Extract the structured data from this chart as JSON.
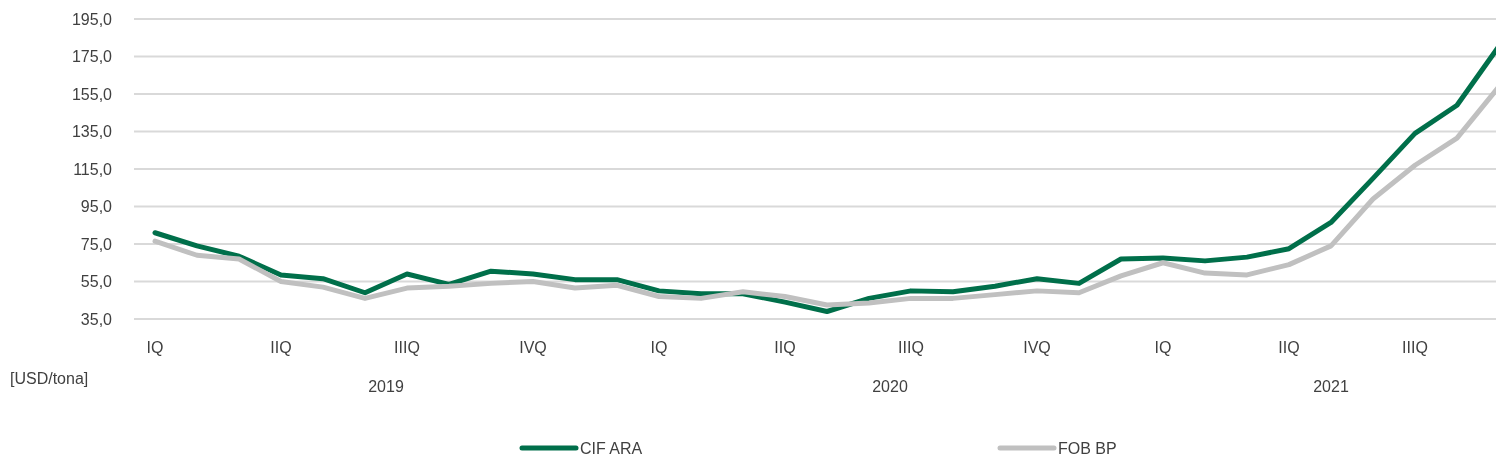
{
  "chart_data": {
    "type": "line",
    "ylabel": "[USD/tona]",
    "categories": [
      "IQ",
      null,
      null,
      "IIQ",
      null,
      null,
      "IIIQ",
      null,
      null,
      "IVQ",
      null,
      null,
      "IQ",
      null,
      null,
      "IIQ",
      null,
      null,
      "IIIQ",
      null,
      null,
      "IVQ",
      null,
      null,
      "IQ",
      null,
      null,
      "IIQ",
      null,
      null,
      "IIIQ",
      null,
      null
    ],
    "annotations": [
      "2019",
      "2020",
      "2021"
    ],
    "series": [
      {
        "name": "CIF ARA",
        "color": "#006f4a",
        "values": [
          81,
          74,
          68.5,
          58.5,
          56.5,
          49,
          59,
          53.5,
          60.5,
          59,
          56,
          56,
          50,
          48.5,
          48.5,
          44,
          39,
          46,
          50,
          49.5,
          52.5,
          56.5,
          54,
          67,
          67.5,
          66,
          68,
          72.5,
          86.5,
          110,
          134,
          149,
          180.5
        ]
      },
      {
        "name": "FOB BP",
        "color": "#c0c0c0",
        "values": [
          76.5,
          69,
          67,
          55,
          52,
          46,
          51.5,
          52.5,
          54,
          55,
          51.5,
          53,
          47,
          46,
          49.5,
          47,
          42.5,
          43.5,
          46,
          46,
          48,
          50,
          49,
          58,
          65,
          59.5,
          58.5,
          64,
          74,
          99,
          117,
          131.5,
          159
        ]
      }
    ],
    "ylim": [
      35,
      195
    ],
    "yticks": [
      {
        "value": 35,
        "label": "35,0"
      },
      {
        "value": 55,
        "label": "55,0"
      },
      {
        "value": 75,
        "label": "75,0"
      },
      {
        "value": 95,
        "label": "95,0"
      },
      {
        "value": 115,
        "label": "115,0"
      },
      {
        "value": 135,
        "label": "135,0"
      },
      {
        "value": 155,
        "label": "155,0"
      },
      {
        "value": 175,
        "label": "175,0"
      },
      {
        "value": 195,
        "label": "195,0"
      }
    ],
    "grid": "y",
    "legend": "bottom",
    "marker": "none",
    "line_style": "solid"
  }
}
